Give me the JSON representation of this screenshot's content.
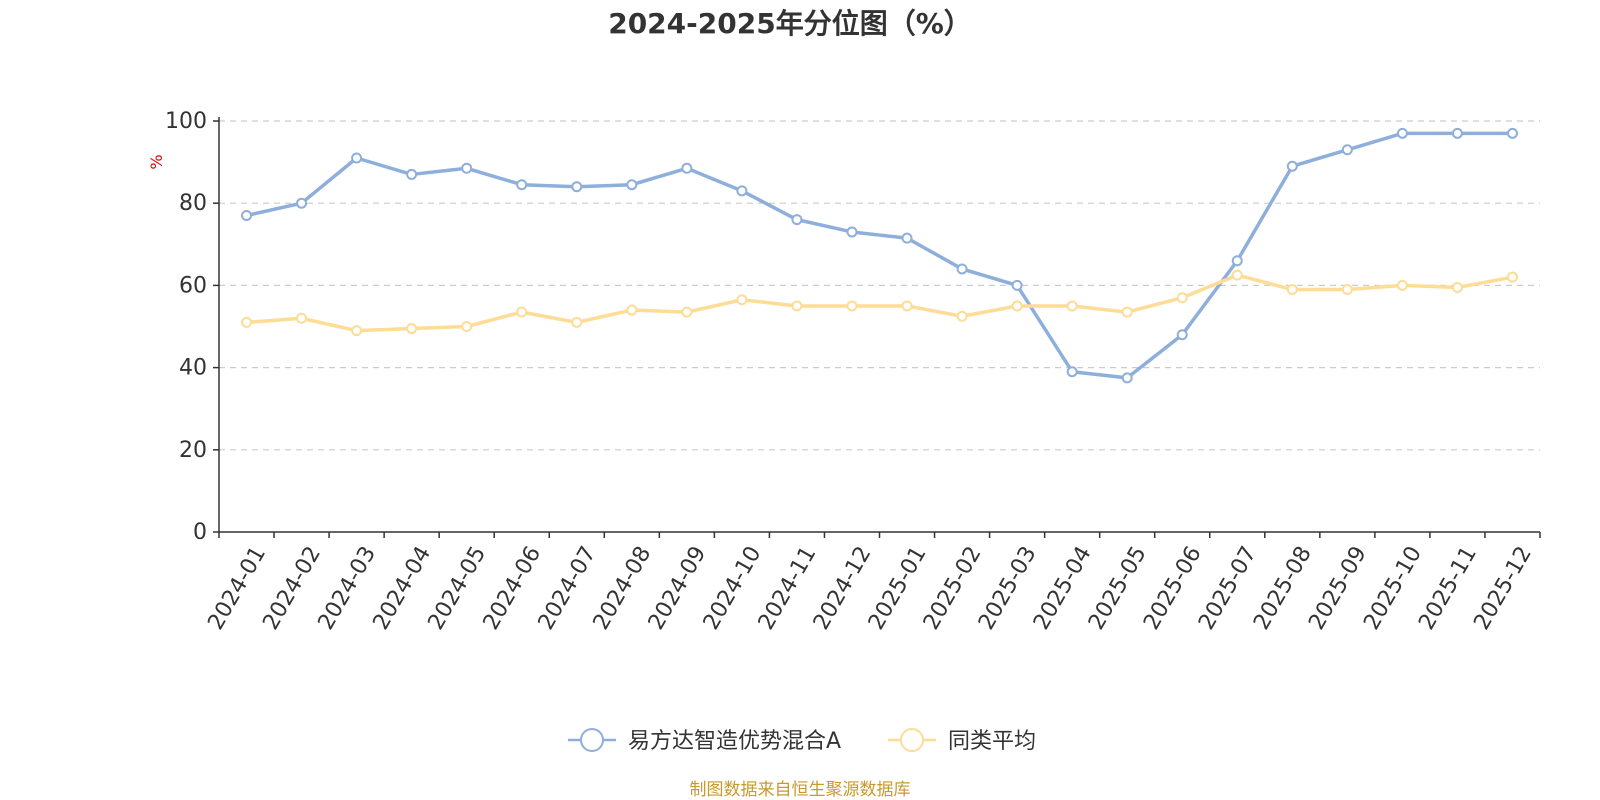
{
  "chart_data": {
    "type": "line",
    "title": "2024-2025年分位图（%）",
    "ylabel": "%",
    "ylim": [
      0,
      100
    ],
    "yticks": [
      "0",
      "20",
      "40",
      "60",
      "80",
      "100"
    ],
    "grid": true,
    "legend_position": "bottom-center",
    "categories": [
      "2024-01",
      "2024-02",
      "2024-03",
      "2024-04",
      "2024-05",
      "2024-06",
      "2024-07",
      "2024-08",
      "2024-09",
      "2024-10",
      "2024-11",
      "2024-12",
      "2025-01",
      "2025-02",
      "2025-03",
      "2025-04",
      "2025-05",
      "2025-06",
      "2025-07",
      "2025-08",
      "2025-09",
      "2025-10",
      "2025-11",
      "2025-12"
    ],
    "series": [
      {
        "name": "易方达智造优势混合A",
        "color": "#8eaedb",
        "values": [
          77,
          80,
          91,
          87,
          88.5,
          84.5,
          84,
          84.5,
          88.5,
          83,
          76,
          73,
          71.5,
          64,
          60,
          39,
          37.5,
          48,
          66,
          89,
          93,
          97,
          97,
          97
        ]
      },
      {
        "name": "同类平均",
        "color": "#fddc96",
        "values": [
          51,
          52,
          49,
          49.5,
          50,
          53.5,
          51,
          54,
          53.5,
          56.5,
          55,
          55,
          55,
          52.5,
          55,
          55,
          53.5,
          57,
          62.5,
          59,
          59,
          60,
          59.5,
          62
        ]
      }
    ],
    "source": "制图数据来自恒生聚源数据库"
  },
  "colors": {
    "unit_label": "#e60000",
    "source_text": "#c8992e",
    "grid": "#cccccc",
    "axis": "#333333"
  }
}
